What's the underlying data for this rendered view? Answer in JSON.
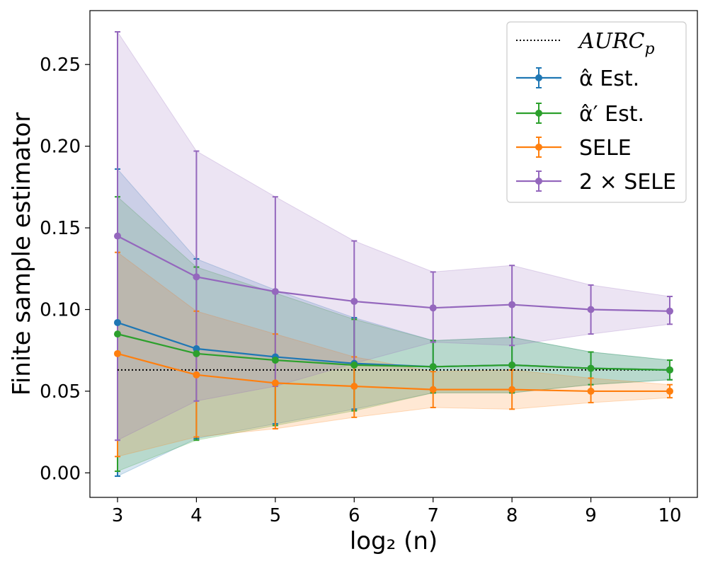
{
  "chart_data": {
    "type": "line",
    "title": "",
    "xlabel": "log₂ (n)",
    "ylabel": "Finite sample estimator",
    "xlim": [
      2.65,
      10.35
    ],
    "ylim": [
      -0.015,
      0.283
    ],
    "x": [
      3,
      4,
      5,
      6,
      7,
      8,
      9,
      10
    ],
    "xticks": [
      "3",
      "4",
      "5",
      "6",
      "7",
      "8",
      "9",
      "10"
    ],
    "yticks": [
      "0.00",
      "0.05",
      "0.10",
      "0.15",
      "0.20",
      "0.25"
    ],
    "ytick_values": [
      0,
      0.05,
      0.1,
      0.15,
      0.2,
      0.25
    ],
    "reference_line": {
      "name": "AURC",
      "subscript": "p",
      "value": 0.063,
      "style": "dotted",
      "color": "#000000"
    },
    "series": [
      {
        "name": "α̂ Est.",
        "color": "#1f77b4",
        "values": [
          0.092,
          0.076,
          0.071,
          0.067,
          0.065,
          0.066,
          0.064,
          0.063
        ],
        "lower": [
          -0.002,
          0.021,
          0.03,
          0.039,
          0.049,
          0.049,
          0.054,
          0.057
        ],
        "upper": [
          0.186,
          0.131,
          0.112,
          0.095,
          0.081,
          0.083,
          0.074,
          0.069
        ]
      },
      {
        "name": "α̂′ Est.",
        "color": "#2ca02c",
        "values": [
          0.085,
          0.073,
          0.069,
          0.066,
          0.065,
          0.066,
          0.064,
          0.063
        ],
        "lower": [
          0.001,
          0.02,
          0.029,
          0.038,
          0.049,
          0.049,
          0.054,
          0.057
        ],
        "upper": [
          0.169,
          0.126,
          0.11,
          0.094,
          0.081,
          0.083,
          0.074,
          0.069
        ]
      },
      {
        "name": "SELE",
        "color": "#ff7f0e",
        "values": [
          0.073,
          0.06,
          0.055,
          0.053,
          0.051,
          0.051,
          0.05,
          0.05
        ],
        "lower": [
          0.01,
          0.022,
          0.027,
          0.034,
          0.04,
          0.039,
          0.043,
          0.046
        ],
        "upper": [
          0.135,
          0.099,
          0.085,
          0.071,
          0.062,
          0.063,
          0.058,
          0.054
        ]
      },
      {
        "name": "2 × SELE",
        "color": "#9467bd",
        "values": [
          0.145,
          0.12,
          0.111,
          0.105,
          0.101,
          0.103,
          0.1,
          0.099
        ],
        "lower": [
          0.02,
          0.044,
          0.053,
          0.067,
          0.08,
          0.078,
          0.085,
          0.091
        ],
        "upper": [
          0.27,
          0.197,
          0.169,
          0.142,
          0.123,
          0.127,
          0.115,
          0.108
        ]
      }
    ],
    "legend_position": "top-right"
  }
}
